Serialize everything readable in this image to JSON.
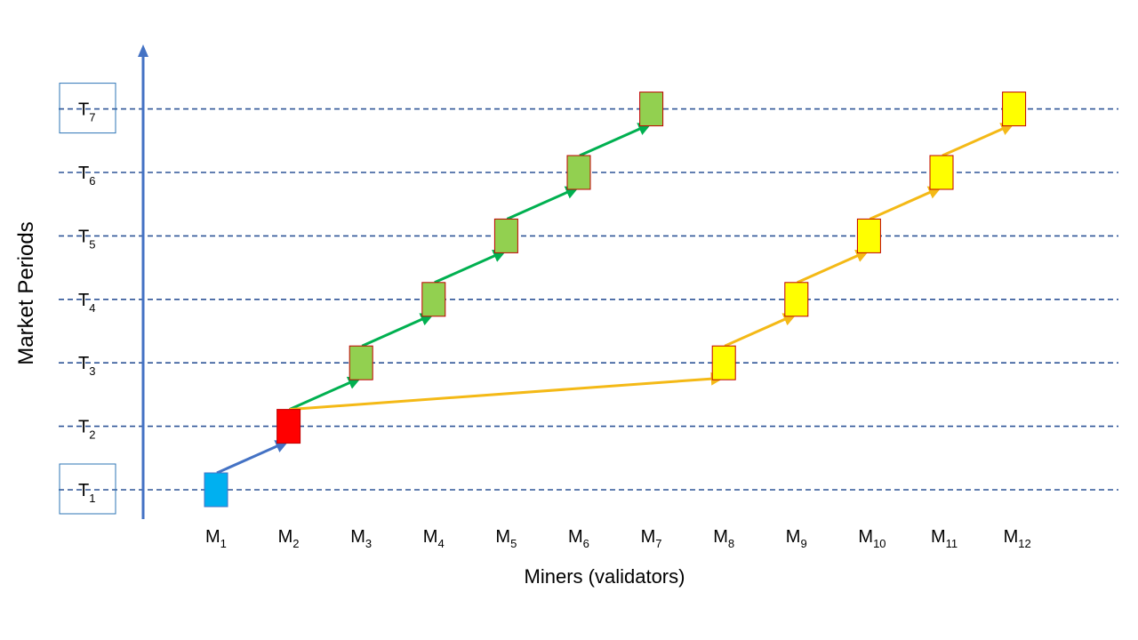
{
  "y_axis_label": "Market Periods",
  "x_axis_label": "Miners (validators)",
  "periods": [
    {
      "base": "T",
      "sub": "1",
      "boxed": true
    },
    {
      "base": "T",
      "sub": "2",
      "boxed": false
    },
    {
      "base": "T",
      "sub": "3",
      "boxed": false
    },
    {
      "base": "T",
      "sub": "4",
      "boxed": false
    },
    {
      "base": "T",
      "sub": "5",
      "boxed": false
    },
    {
      "base": "T",
      "sub": "6",
      "boxed": false
    },
    {
      "base": "T",
      "sub": "7",
      "boxed": true
    }
  ],
  "miners": [
    {
      "base": "M",
      "sub": "1"
    },
    {
      "base": "M",
      "sub": "2"
    },
    {
      "base": "M",
      "sub": "3"
    },
    {
      "base": "M",
      "sub": "4"
    },
    {
      "base": "M",
      "sub": "5"
    },
    {
      "base": "M",
      "sub": "6"
    },
    {
      "base": "M",
      "sub": "7"
    },
    {
      "base": "M",
      "sub": "8"
    },
    {
      "base": "M",
      "sub": "9"
    },
    {
      "base": "M",
      "sub": "10"
    },
    {
      "base": "M",
      "sub": "11"
    },
    {
      "base": "M",
      "sub": "12"
    }
  ],
  "blocks": [
    {
      "miner": 1,
      "period": 1,
      "color": "#00b0f0",
      "border": "#4472c4"
    },
    {
      "miner": 2,
      "period": 2,
      "color": "#ff0000",
      "border": "#c00000"
    },
    {
      "miner": 3,
      "period": 3,
      "color": "#92d050",
      "border": "#c00000"
    },
    {
      "miner": 4,
      "period": 4,
      "color": "#92d050",
      "border": "#c00000"
    },
    {
      "miner": 5,
      "period": 5,
      "color": "#92d050",
      "border": "#c00000"
    },
    {
      "miner": 6,
      "period": 6,
      "color": "#92d050",
      "border": "#c00000"
    },
    {
      "miner": 7,
      "period": 7,
      "color": "#92d050",
      "border": "#c00000"
    },
    {
      "miner": 8,
      "period": 3,
      "color": "#ffff00",
      "border": "#c00000"
    },
    {
      "miner": 9,
      "period": 4,
      "color": "#ffff00",
      "border": "#c00000"
    },
    {
      "miner": 10,
      "period": 5,
      "color": "#ffff00",
      "border": "#c00000"
    },
    {
      "miner": 11,
      "period": 6,
      "color": "#ffff00",
      "border": "#c00000"
    },
    {
      "miner": 12,
      "period": 7,
      "color": "#ffff00",
      "border": "#c00000"
    }
  ],
  "links": [
    {
      "from": 1,
      "to": 2,
      "color": "#4472c4"
    },
    {
      "from": 2,
      "to": 3,
      "color": "#00b050"
    },
    {
      "from": 3,
      "to": 4,
      "color": "#00b050"
    },
    {
      "from": 4,
      "to": 5,
      "color": "#00b050"
    },
    {
      "from": 5,
      "to": 6,
      "color": "#00b050"
    },
    {
      "from": 6,
      "to": 7,
      "color": "#00b050"
    },
    {
      "from": 2,
      "to": 8,
      "color": "#f4b916"
    },
    {
      "from": 8,
      "to": 9,
      "color": "#f4b916"
    },
    {
      "from": 9,
      "to": 10,
      "color": "#f4b916"
    },
    {
      "from": 10,
      "to": 11,
      "color": "#f4b916"
    },
    {
      "from": 11,
      "to": 12,
      "color": "#f4b916"
    }
  ],
  "colors": {
    "axis": "#4472c4",
    "gridline": "#2f5597",
    "label_box": "#2e75b6"
  }
}
